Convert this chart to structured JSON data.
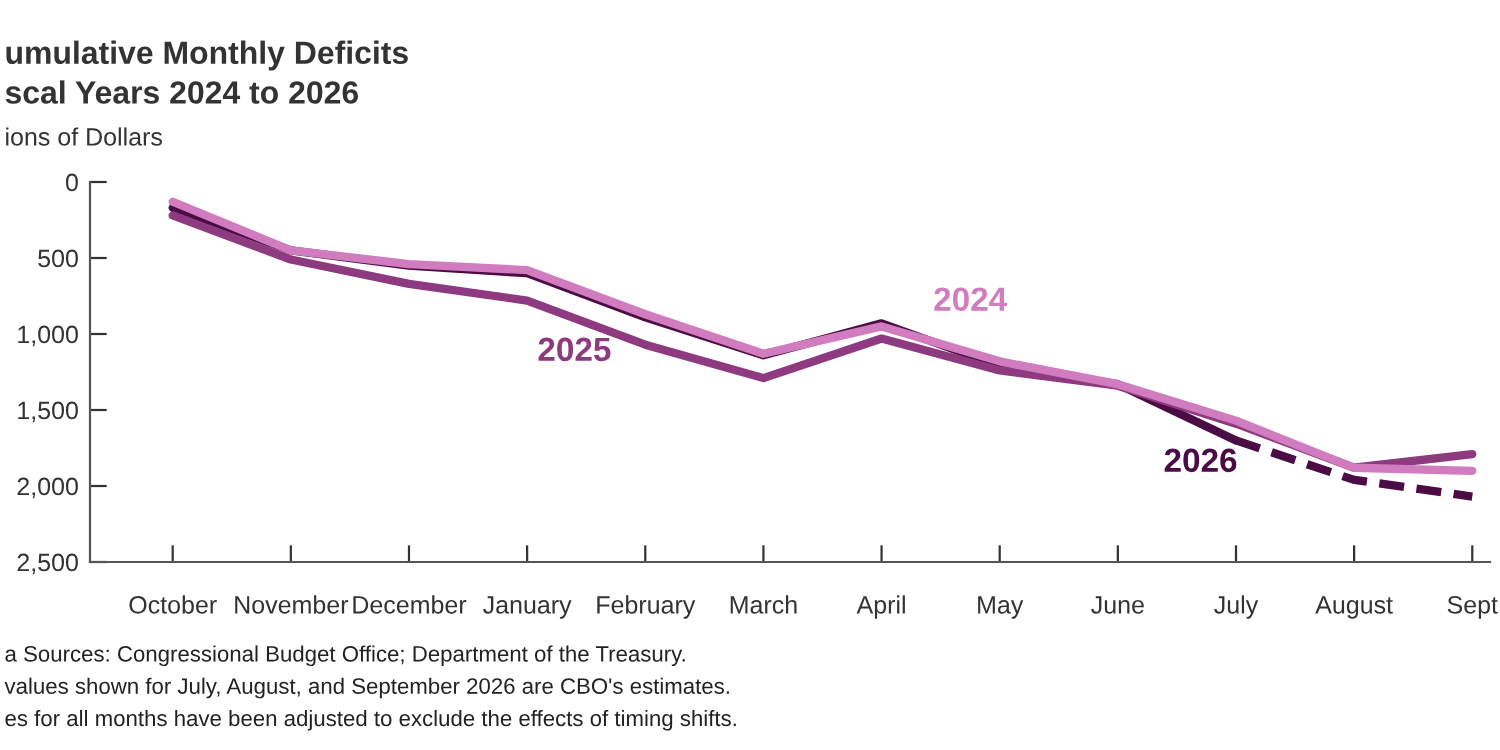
{
  "chart_data": {
    "type": "line",
    "title": "umulative Monthly Deficits",
    "subtitle": "scal Years 2024 to 2026",
    "ylabel": "ions of Dollars",
    "categories": [
      "October",
      "November",
      "December",
      "January",
      "February",
      "March",
      "April",
      "May",
      "June",
      "July",
      "August",
      "Sept"
    ],
    "series": [
      {
        "name": "2024",
        "color": "#d27cc0",
        "values": [
          130,
          450,
          540,
          580,
          870,
          1130,
          950,
          1180,
          1330,
          1570,
          1880,
          1900
        ]
      },
      {
        "name": "2025",
        "color": "#8e3a80",
        "values": [
          220,
          510,
          670,
          780,
          1070,
          1290,
          1030,
          1240,
          1340,
          1590,
          1880,
          1790
        ]
      },
      {
        "name": "2026",
        "color": "#4b0c45",
        "values": [
          170,
          450,
          550,
          600,
          890,
          1140,
          930,
          1210,
          1330,
          1700,
          null,
          null
        ]
      },
      {
        "color": "#4b0c45",
        "line_style": "dashed",
        "values": [
          null,
          null,
          null,
          null,
          null,
          null,
          null,
          null,
          null,
          1700,
          1960,
          2070
        ]
      }
    ],
    "ylim": [
      2500,
      0
    ],
    "yticks": [
      0,
      500,
      {
        "value": 1000,
        "label": "1,000"
      },
      {
        "value": 1500,
        "label": "1,500"
      },
      {
        "value": 2000,
        "label": "2,000"
      },
      {
        "value": 2500,
        "label": "2,500"
      }
    ],
    "grid": false,
    "legend": false,
    "annotations": [
      "a Sources: Congressional Budget Office; Department of the Treasury.",
      "values shown for July, August, and September 2026 are CBO's estimates.",
      "es for all months have been adjusted to exclude the effects of timing shifts."
    ]
  }
}
